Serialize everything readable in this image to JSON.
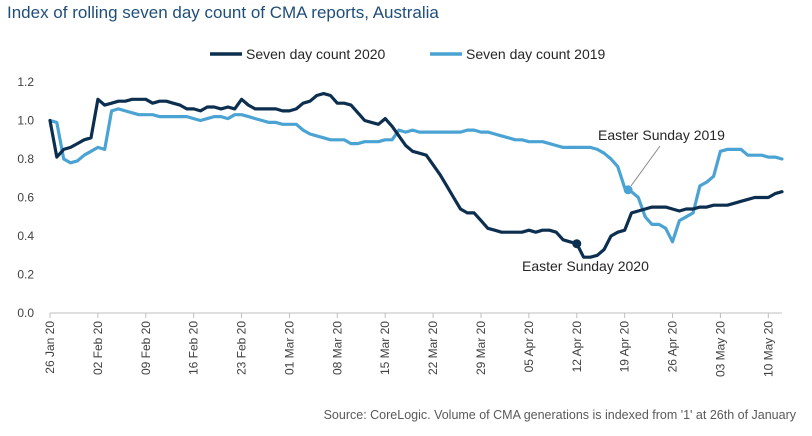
{
  "chart_data": {
    "type": "line",
    "title": "Index of rolling seven day count of CMA reports, Australia",
    "source": "Source: CoreLogic. Volume of CMA generations is indexed from '1' at 26th of January",
    "xlabel": "",
    "ylabel": "",
    "ylim": [
      0,
      1.2
    ],
    "yticks": [
      "0.0",
      "0.2",
      "0.4",
      "0.6",
      "0.8",
      "1.0",
      "1.2"
    ],
    "x_start": "26 Jan 20",
    "x_end": "13 May 20",
    "xticks": [
      {
        "label": "26 Jan 20",
        "day": 0
      },
      {
        "label": "02 Feb 20",
        "day": 7
      },
      {
        "label": "09 Feb 20",
        "day": 14
      },
      {
        "label": "16 Feb 20",
        "day": 21
      },
      {
        "label": "23 Feb 20",
        "day": 28
      },
      {
        "label": "01 Mar 20",
        "day": 35
      },
      {
        "label": "08 Mar 20",
        "day": 42
      },
      {
        "label": "15 Mar 20",
        "day": 49
      },
      {
        "label": "22 Mar 20",
        "day": 56
      },
      {
        "label": "29 Mar 20",
        "day": 63
      },
      {
        "label": "05 Apr 20",
        "day": 70
      },
      {
        "label": "12 Apr 20",
        "day": 77
      },
      {
        "label": "19 Apr 20",
        "day": 84
      },
      {
        "label": "26 Apr 20",
        "day": 91
      },
      {
        "label": "03 May 20",
        "day": 98
      },
      {
        "label": "10 May 20",
        "day": 105
      }
    ],
    "legend": "top-center",
    "grid": false,
    "series": [
      {
        "name": "Seven day count 2020",
        "color": "#0d2f4f",
        "points": [
          [
            0,
            1.0
          ],
          [
            1,
            0.81
          ],
          [
            2,
            0.85
          ],
          [
            3,
            0.86
          ],
          [
            4,
            0.88
          ],
          [
            5,
            0.9
          ],
          [
            6,
            0.91
          ],
          [
            7,
            1.11
          ],
          [
            8,
            1.08
          ],
          [
            9,
            1.09
          ],
          [
            10,
            1.1
          ],
          [
            11,
            1.1
          ],
          [
            12,
            1.11
          ],
          [
            13,
            1.11
          ],
          [
            14,
            1.11
          ],
          [
            15,
            1.09
          ],
          [
            16,
            1.1
          ],
          [
            17,
            1.1
          ],
          [
            18,
            1.09
          ],
          [
            19,
            1.08
          ],
          [
            20,
            1.06
          ],
          [
            21,
            1.06
          ],
          [
            22,
            1.05
          ],
          [
            23,
            1.07
          ],
          [
            24,
            1.07
          ],
          [
            25,
            1.06
          ],
          [
            26,
            1.07
          ],
          [
            27,
            1.06
          ],
          [
            28,
            1.11
          ],
          [
            29,
            1.08
          ],
          [
            30,
            1.06
          ],
          [
            31,
            1.06
          ],
          [
            32,
            1.06
          ],
          [
            33,
            1.06
          ],
          [
            34,
            1.05
          ],
          [
            35,
            1.05
          ],
          [
            36,
            1.06
          ],
          [
            37,
            1.09
          ],
          [
            38,
            1.1
          ],
          [
            39,
            1.13
          ],
          [
            40,
            1.14
          ],
          [
            41,
            1.13
          ],
          [
            42,
            1.09
          ],
          [
            43,
            1.09
          ],
          [
            44,
            1.08
          ],
          [
            45,
            1.04
          ],
          [
            46,
            1.0
          ],
          [
            47,
            0.99
          ],
          [
            48,
            0.98
          ],
          [
            49,
            1.01
          ],
          [
            50,
            0.97
          ],
          [
            51,
            0.92
          ],
          [
            52,
            0.87
          ],
          [
            53,
            0.84
          ],
          [
            54,
            0.83
          ],
          [
            55,
            0.82
          ],
          [
            56,
            0.77
          ],
          [
            57,
            0.72
          ],
          [
            58,
            0.66
          ],
          [
            59,
            0.6
          ],
          [
            60,
            0.54
          ],
          [
            61,
            0.52
          ],
          [
            62,
            0.52
          ],
          [
            63,
            0.48
          ],
          [
            64,
            0.44
          ],
          [
            65,
            0.43
          ],
          [
            66,
            0.42
          ],
          [
            67,
            0.42
          ],
          [
            68,
            0.42
          ],
          [
            69,
            0.42
          ],
          [
            70,
            0.43
          ],
          [
            71,
            0.42
          ],
          [
            72,
            0.43
          ],
          [
            73,
            0.43
          ],
          [
            74,
            0.42
          ],
          [
            75,
            0.38
          ],
          [
            76,
            0.37
          ],
          [
            77,
            0.36
          ],
          [
            78,
            0.29
          ],
          [
            79,
            0.29
          ],
          [
            80,
            0.3
          ],
          [
            81,
            0.33
          ],
          [
            82,
            0.4
          ],
          [
            83,
            0.42
          ],
          [
            84,
            0.43
          ],
          [
            85,
            0.52
          ],
          [
            86,
            0.53
          ],
          [
            87,
            0.54
          ],
          [
            88,
            0.55
          ],
          [
            89,
            0.55
          ],
          [
            90,
            0.55
          ],
          [
            91,
            0.54
          ],
          [
            92,
            0.53
          ],
          [
            93,
            0.54
          ],
          [
            94,
            0.54
          ],
          [
            95,
            0.55
          ],
          [
            96,
            0.55
          ],
          [
            97,
            0.56
          ],
          [
            98,
            0.56
          ],
          [
            99,
            0.56
          ],
          [
            100,
            0.57
          ],
          [
            101,
            0.58
          ],
          [
            102,
            0.59
          ],
          [
            103,
            0.6
          ],
          [
            104,
            0.6
          ],
          [
            105,
            0.6
          ],
          [
            106,
            0.62
          ],
          [
            107,
            0.63
          ]
        ]
      },
      {
        "name": "Seven day count 2019",
        "color": "#4ba3d3",
        "points": [
          [
            0,
            1.0
          ],
          [
            1,
            0.99
          ],
          [
            2,
            0.8
          ],
          [
            3,
            0.78
          ],
          [
            4,
            0.79
          ],
          [
            5,
            0.82
          ],
          [
            6,
            0.84
          ],
          [
            7,
            0.86
          ],
          [
            8,
            0.85
          ],
          [
            9,
            1.05
          ],
          [
            10,
            1.06
          ],
          [
            11,
            1.05
          ],
          [
            12,
            1.04
          ],
          [
            13,
            1.03
          ],
          [
            14,
            1.03
          ],
          [
            15,
            1.03
          ],
          [
            16,
            1.02
          ],
          [
            17,
            1.02
          ],
          [
            18,
            1.02
          ],
          [
            19,
            1.02
          ],
          [
            20,
            1.02
          ],
          [
            21,
            1.01
          ],
          [
            22,
            1.0
          ],
          [
            23,
            1.01
          ],
          [
            24,
            1.02
          ],
          [
            25,
            1.02
          ],
          [
            26,
            1.01
          ],
          [
            27,
            1.03
          ],
          [
            28,
            1.03
          ],
          [
            29,
            1.02
          ],
          [
            30,
            1.01
          ],
          [
            31,
            1.0
          ],
          [
            32,
            0.99
          ],
          [
            33,
            0.99
          ],
          [
            34,
            0.98
          ],
          [
            35,
            0.98
          ],
          [
            36,
            0.98
          ],
          [
            37,
            0.95
          ],
          [
            38,
            0.93
          ],
          [
            39,
            0.92
          ],
          [
            40,
            0.91
          ],
          [
            41,
            0.9
          ],
          [
            42,
            0.9
          ],
          [
            43,
            0.9
          ],
          [
            44,
            0.88
          ],
          [
            45,
            0.88
          ],
          [
            46,
            0.89
          ],
          [
            47,
            0.89
          ],
          [
            48,
            0.89
          ],
          [
            49,
            0.9
          ],
          [
            50,
            0.9
          ],
          [
            51,
            0.95
          ],
          [
            52,
            0.94
          ],
          [
            53,
            0.95
          ],
          [
            54,
            0.94
          ],
          [
            55,
            0.94
          ],
          [
            56,
            0.94
          ],
          [
            57,
            0.94
          ],
          [
            58,
            0.94
          ],
          [
            59,
            0.94
          ],
          [
            60,
            0.94
          ],
          [
            61,
            0.95
          ],
          [
            62,
            0.95
          ],
          [
            63,
            0.94
          ],
          [
            64,
            0.94
          ],
          [
            65,
            0.93
          ],
          [
            66,
            0.92
          ],
          [
            67,
            0.91
          ],
          [
            68,
            0.9
          ],
          [
            69,
            0.9
          ],
          [
            70,
            0.89
          ],
          [
            71,
            0.89
          ],
          [
            72,
            0.89
          ],
          [
            73,
            0.88
          ],
          [
            74,
            0.87
          ],
          [
            75,
            0.86
          ],
          [
            76,
            0.86
          ],
          [
            77,
            0.86
          ],
          [
            78,
            0.86
          ],
          [
            79,
            0.86
          ],
          [
            80,
            0.85
          ],
          [
            81,
            0.83
          ],
          [
            82,
            0.8
          ],
          [
            83,
            0.76
          ],
          [
            84,
            0.65
          ],
          [
            85,
            0.63
          ],
          [
            86,
            0.6
          ],
          [
            87,
            0.5
          ],
          [
            88,
            0.46
          ],
          [
            89,
            0.46
          ],
          [
            90,
            0.44
          ],
          [
            91,
            0.37
          ],
          [
            92,
            0.48
          ],
          [
            93,
            0.5
          ],
          [
            94,
            0.52
          ],
          [
            95,
            0.66
          ],
          [
            96,
            0.68
          ],
          [
            97,
            0.71
          ],
          [
            98,
            0.84
          ],
          [
            99,
            0.85
          ],
          [
            100,
            0.85
          ],
          [
            101,
            0.85
          ],
          [
            102,
            0.82
          ],
          [
            103,
            0.82
          ],
          [
            104,
            0.82
          ],
          [
            105,
            0.81
          ],
          [
            106,
            0.81
          ],
          [
            107,
            0.8
          ]
        ]
      }
    ],
    "annotations": [
      {
        "text": "Easter Sunday 2020",
        "day": 77,
        "value": 0.36,
        "series": 0
      },
      {
        "text": "Easter Sunday 2019",
        "day": 84.5,
        "value": 0.64,
        "series": 1
      }
    ]
  }
}
